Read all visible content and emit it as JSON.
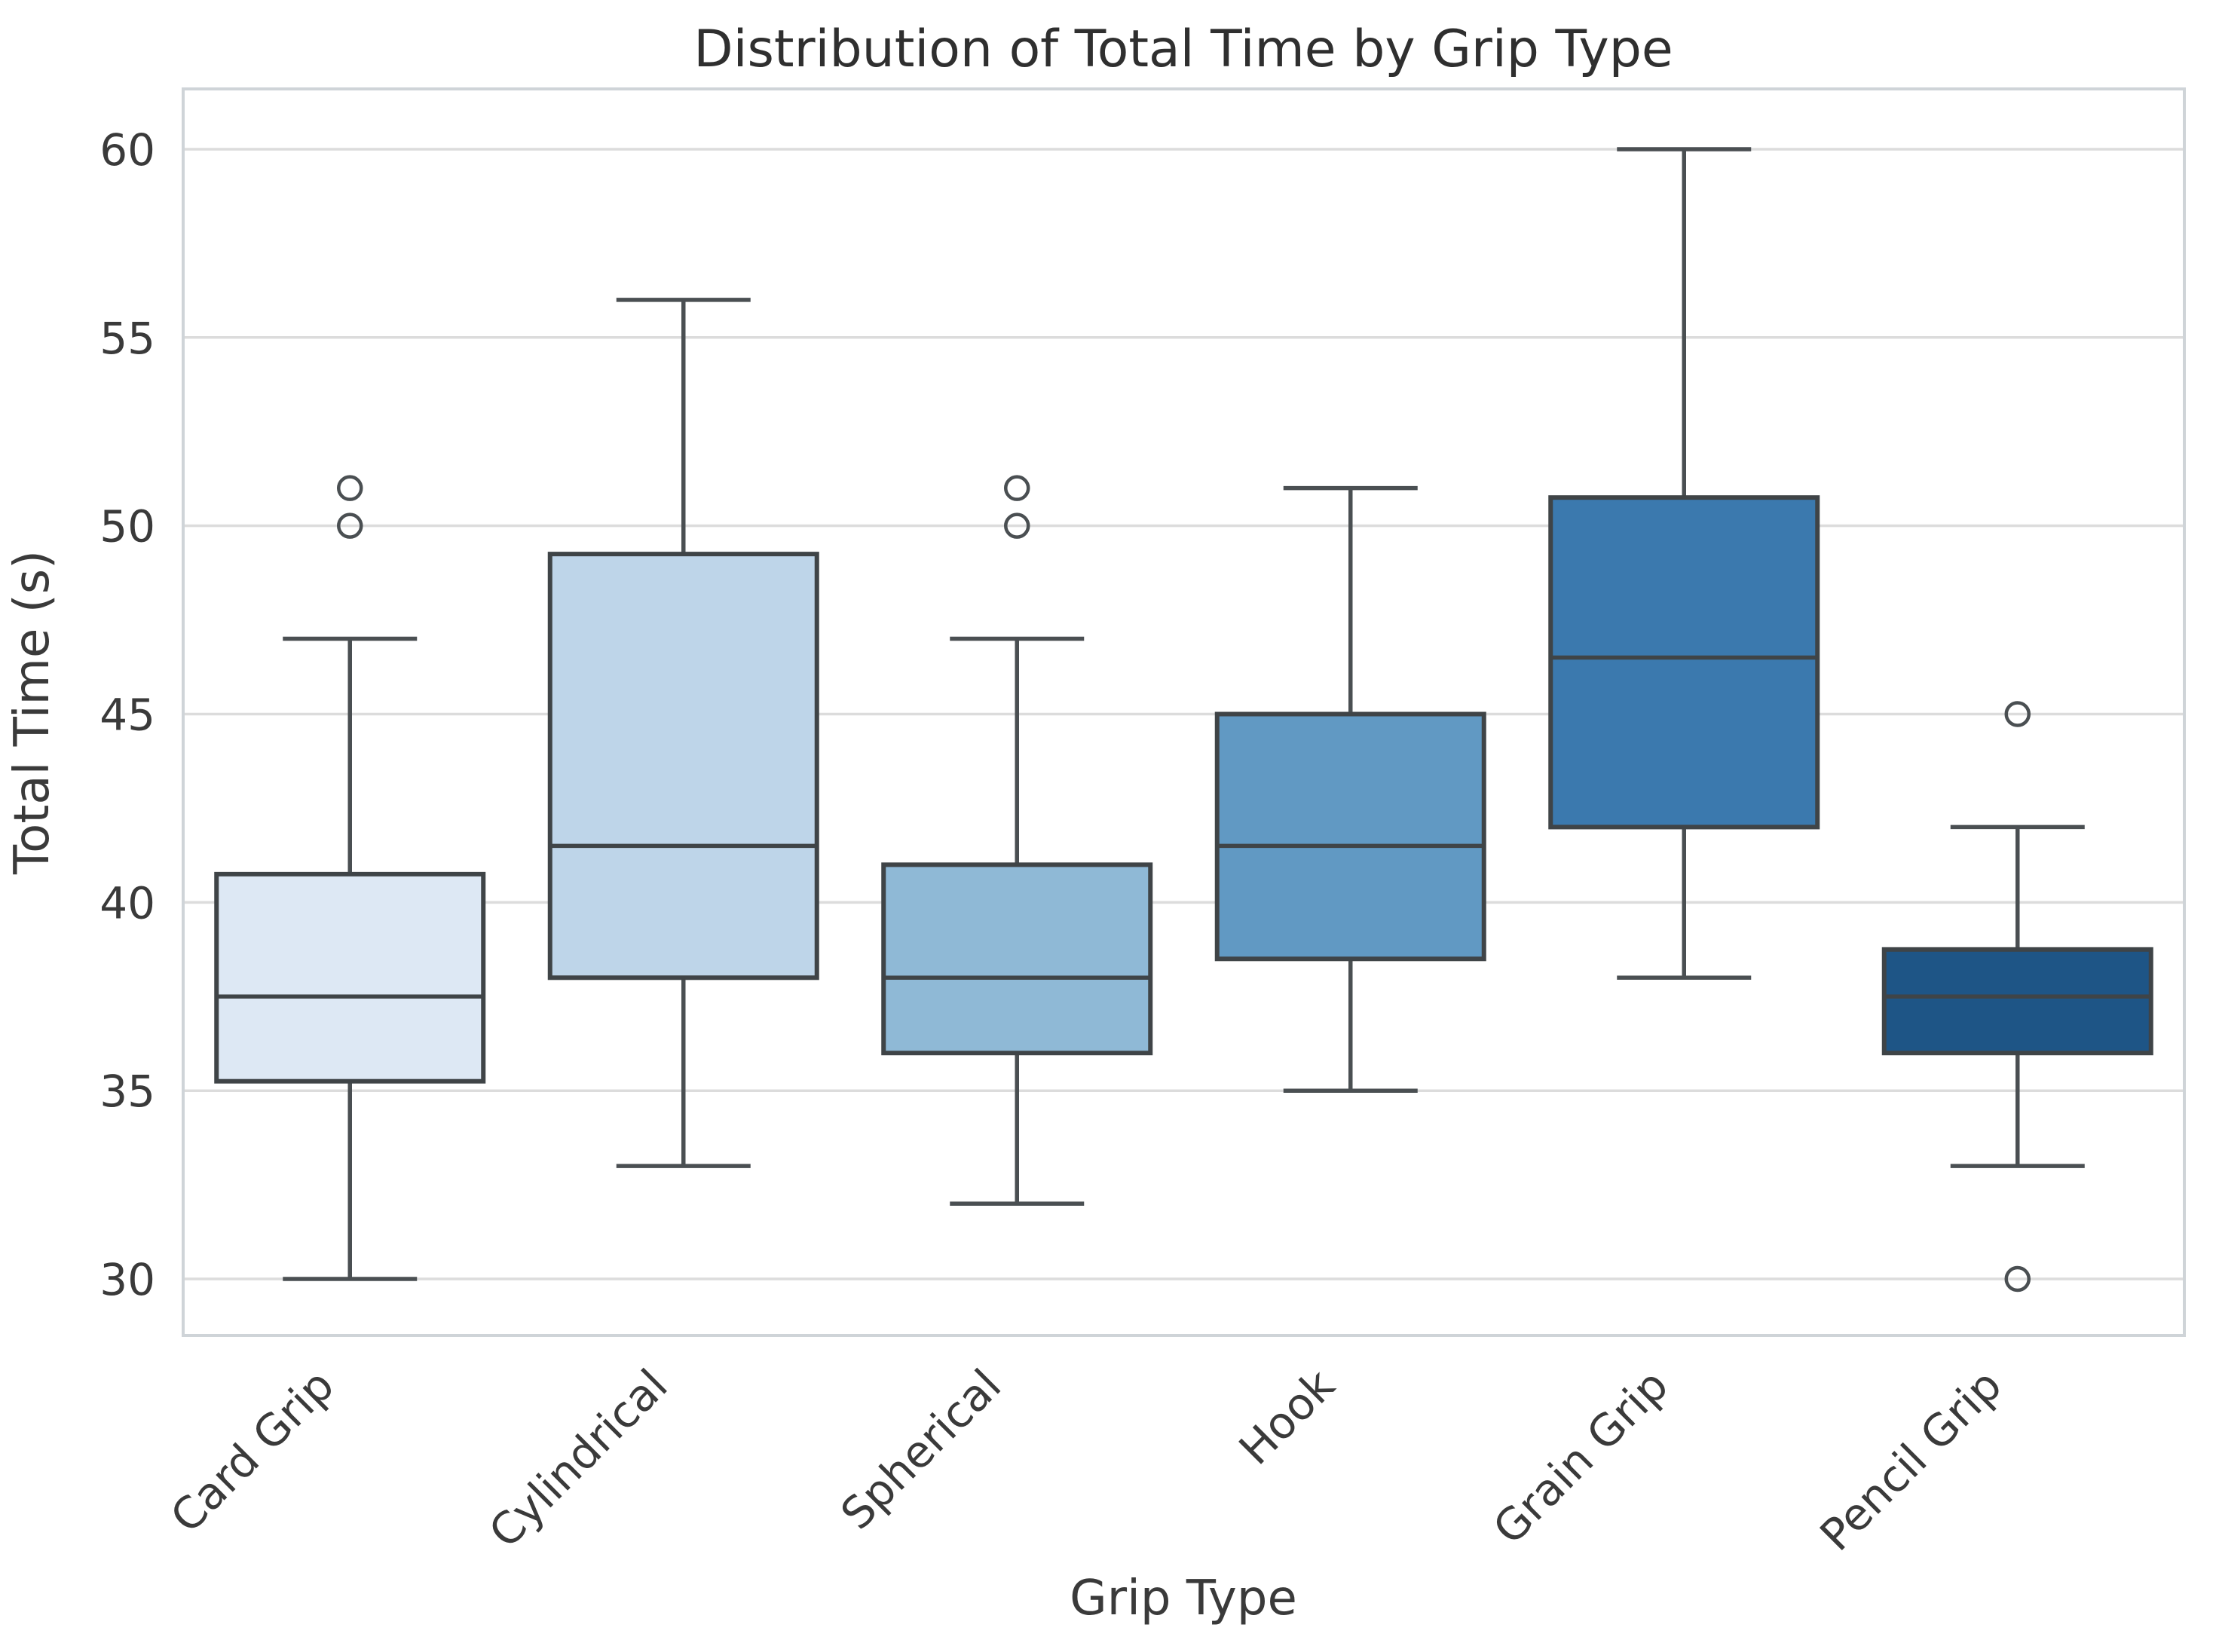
{
  "figure": {
    "background": "#ffffff"
  },
  "chart_data": {
    "type": "box",
    "title": "Distribution of Total Time by Grip Type",
    "xlabel": "Grip Type",
    "ylabel": "Total Time (s)",
    "ylim": [
      28.5,
      61.6
    ],
    "yticks": [
      30,
      35,
      40,
      45,
      50,
      55,
      60
    ],
    "grid": "horizontal",
    "legend": "none",
    "categories": [
      "Card Grip",
      "Cylindrical",
      "Spherical",
      "Hook",
      "Grain Grip",
      "Pencil Grip"
    ],
    "series": [
      {
        "name": "Card Grip",
        "whisker_low": 30,
        "q1": 35.25,
        "median": 37.5,
        "q3": 40.75,
        "whisker_high": 47,
        "outliers": [
          50,
          51
        ],
        "fill": "#dde8f4"
      },
      {
        "name": "Cylindrical",
        "whisker_low": 33,
        "q1": 38.0,
        "median": 41.5,
        "q3": 49.25,
        "whisker_high": 56,
        "outliers": [],
        "fill": "#bed5e9"
      },
      {
        "name": "Spherical",
        "whisker_low": 32,
        "q1": 36.0,
        "median": 38.0,
        "q3": 41.0,
        "whisker_high": 47,
        "outliers": [
          50,
          51
        ],
        "fill": "#8fb9d6"
      },
      {
        "name": "Hook",
        "whisker_low": 35,
        "q1": 38.5,
        "median": 41.5,
        "q3": 45.0,
        "whisker_high": 51,
        "outliers": [],
        "fill": "#6199c3"
      },
      {
        "name": "Grain Grip",
        "whisker_low": 38,
        "q1": 42.0,
        "median": 46.5,
        "q3": 50.75,
        "whisker_high": 60,
        "outliers": [],
        "fill": "#3b79ae"
      },
      {
        "name": "Pencil Grip",
        "whisker_low": 33,
        "q1": 36.0,
        "median": 37.5,
        "q3": 38.75,
        "whisker_high": 42,
        "outliers": [
          45,
          30
        ],
        "fill": "#1e5586"
      }
    ],
    "style": {
      "box_edge_color": "#3f4447",
      "whisker_color": "#4a4f52",
      "grid_color": "#dcdcdc",
      "spine_color": "#cfd4d8",
      "text_color": "#3a3a3a"
    }
  }
}
